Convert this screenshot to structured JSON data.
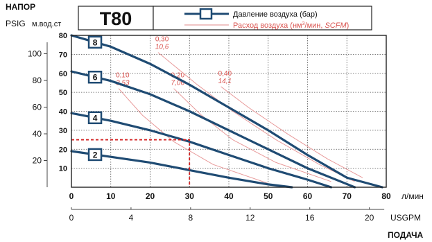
{
  "chart_data": {
    "type": "line",
    "title": "T80",
    "y_left_title": "НАПОР",
    "y_left_units": [
      "PSIG",
      "м.вод.ст"
    ],
    "x_bottom_unit": "л/мин",
    "x_secondary_unit": "USGPM",
    "x_title": "ПОДАЧА",
    "legend": {
      "air_pressure_label": "Давление воздуха (бар)",
      "air_flow_label_prefix": "Расход воздуха (нм",
      "air_flow_label_sup": "3",
      "air_flow_label_mid": "/мин, ",
      "air_flow_label_italic": "SCFM",
      "air_flow_label_suffix": ")"
    },
    "x_lpm": {
      "min": 0,
      "max": 80,
      "ticks": [
        "0",
        "10",
        "20",
        "30",
        "40",
        "50",
        "60",
        "70",
        "80"
      ]
    },
    "y_m": {
      "min": 0,
      "max": 80,
      "ticks": [
        "10",
        "20",
        "30",
        "40",
        "50",
        "60",
        "70",
        "80"
      ]
    },
    "y_psi_ticks": [
      {
        "label": "20",
        "value": 20
      },
      {
        "label": "40",
        "value": 40
      },
      {
        "label": "60",
        "value": 60
      },
      {
        "label": "80",
        "value": 80
      },
      {
        "label": "100",
        "value": 100
      }
    ],
    "x_gpm_ticks": [
      {
        "label": "0",
        "value": 0
      },
      {
        "label": "4",
        "value": 4
      },
      {
        "label": "8",
        "value": 8
      },
      {
        "label": "12",
        "value": 12
      },
      {
        "label": "16",
        "value": 16
      },
      {
        "label": "20",
        "value": 20
      }
    ],
    "series": [
      {
        "name": "8",
        "points": [
          [
            0,
            80
          ],
          [
            10,
            74
          ],
          [
            20,
            65
          ],
          [
            30,
            54
          ],
          [
            40,
            42
          ],
          [
            50,
            30
          ],
          [
            60,
            17
          ],
          [
            70,
            5
          ],
          [
            79,
            0
          ]
        ]
      },
      {
        "name": "6",
        "points": [
          [
            0,
            61
          ],
          [
            10,
            56
          ],
          [
            20,
            49
          ],
          [
            30,
            40
          ],
          [
            40,
            30
          ],
          [
            50,
            20
          ],
          [
            60,
            10
          ],
          [
            72,
            0
          ]
        ]
      },
      {
        "name": "4",
        "points": [
          [
            0,
            39
          ],
          [
            10,
            35
          ],
          [
            20,
            30
          ],
          [
            30,
            24
          ],
          [
            40,
            17
          ],
          [
            50,
            10
          ],
          [
            60,
            4
          ],
          [
            66,
            0
          ]
        ]
      },
      {
        "name": "2",
        "points": [
          [
            0,
            19
          ],
          [
            10,
            16
          ],
          [
            20,
            13
          ],
          [
            30,
            9
          ],
          [
            40,
            5
          ],
          [
            50,
            1.5
          ],
          [
            56,
            0
          ]
        ]
      }
    ],
    "air_curves": [
      {
        "label": "0,10",
        "scfm": "3,53",
        "points": [
          [
            12,
            52
          ],
          [
            18,
            38
          ],
          [
            26,
            24
          ],
          [
            36,
            12
          ],
          [
            50,
            2
          ]
        ]
      },
      {
        "label": "0,20",
        "scfm": "7,06",
        "points": [
          [
            26,
            52
          ],
          [
            33,
            38
          ],
          [
            41,
            25
          ],
          [
            52,
            13
          ],
          [
            66,
            3
          ]
        ]
      },
      {
        "label": "0,30",
        "scfm": "10,6",
        "points": [
          [
            22,
            71
          ],
          [
            32,
            54
          ],
          [
            41,
            40
          ],
          [
            52,
            25
          ],
          [
            63,
            12
          ],
          [
            72,
            3
          ]
        ]
      },
      {
        "label": "0,40",
        "scfm": "14,1",
        "points": [
          [
            38,
            53
          ],
          [
            45,
            42
          ],
          [
            55,
            28
          ],
          [
            65,
            15
          ],
          [
            74,
            5
          ]
        ]
      }
    ],
    "annotation": {
      "x": 30,
      "y": 25,
      "style": "dashed"
    }
  }
}
